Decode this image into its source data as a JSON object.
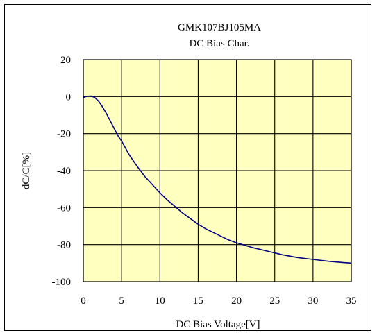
{
  "chart_data": {
    "type": "line",
    "title": "GMK107BJ105MA",
    "subtitle": "DC Bias Char.",
    "xlabel": "DC Bias Voltage[V]",
    "ylabel": "dC/C[%]",
    "xlim": [
      0,
      35
    ],
    "ylim": [
      -100,
      20
    ],
    "xticks": [
      "0",
      "5",
      "10",
      "15",
      "20",
      "25",
      "30",
      "35"
    ],
    "yticks": [
      "20",
      "0",
      "-20",
      "-40",
      "-60",
      "-80",
      "-100"
    ],
    "grid": true,
    "legend": "none",
    "plot_background": "#ffffc0",
    "line_color": "#000080",
    "series": [
      {
        "x": [
          0,
          0.5,
          1,
          1.5,
          2,
          2.5,
          3,
          3.5,
          4,
          4.5,
          5,
          6,
          7,
          8,
          9,
          10,
          11,
          12,
          13,
          14,
          15,
          16,
          17,
          18,
          19,
          20,
          22,
          24,
          26,
          28,
          30,
          32,
          34,
          35
        ],
        "y": [
          -0.5,
          0.2,
          0.3,
          -0.5,
          -2.5,
          -5.5,
          -9,
          -13,
          -17,
          -21,
          -24,
          -31.5,
          -37.5,
          -43,
          -47.5,
          -52,
          -56,
          -59.5,
          -63,
          -66,
          -69,
          -71.5,
          -73.5,
          -75.5,
          -77.5,
          -79,
          -81.5,
          -83.5,
          -85.5,
          -87,
          -88,
          -89,
          -89.7,
          -90
        ]
      }
    ]
  }
}
